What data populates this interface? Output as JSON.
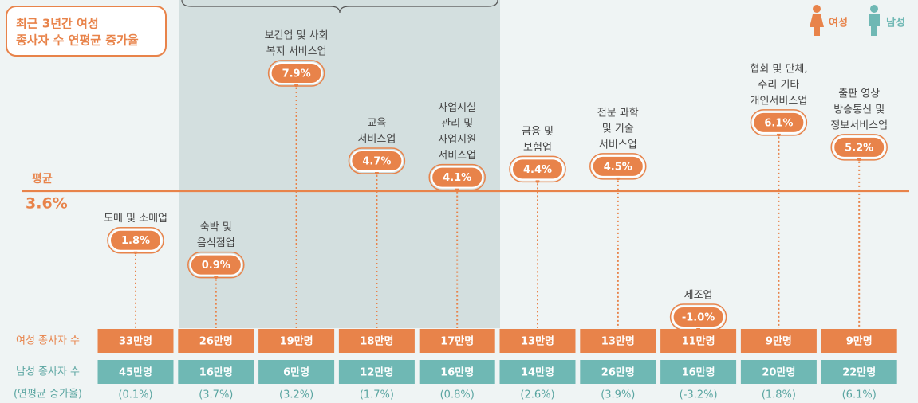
{
  "chart_data": {
    "type": "lollipop",
    "title": [
      "최근 3년간 여성",
      "종사자 수 연평균 증가율"
    ],
    "legend": [
      {
        "name": "여성",
        "color": "#e8834a"
      },
      {
        "name": "남성",
        "color": "#6fb8b4"
      }
    ],
    "categories": [
      [
        "도매 및 소매업"
      ],
      [
        "숙박 및",
        "음식점업"
      ],
      [
        "보건업 및 사회",
        "복지 서비스업"
      ],
      [
        "교육",
        "서비스업"
      ],
      [
        "사업시설",
        "관리 및",
        "사업지원",
        "서비스업"
      ],
      [
        "금융 및",
        "보험업"
      ],
      [
        "전문 과학",
        "및 기술",
        "서비스업"
      ],
      [
        "제조업"
      ],
      [
        "협회 및 단체,",
        "수리 기타",
        "개인서비스업"
      ],
      [
        "출판 영상",
        "방송통신 및",
        "정보서비스업"
      ]
    ],
    "color": "#e8834a",
    "values": [
      1.8,
      0.9,
      7.9,
      4.7,
      4.1,
      4.4,
      4.5,
      -1.0,
      6.1,
      5.2
    ],
    "value_labels": [
      "1.8%",
      "0.9%",
      "7.9%",
      "4.7%",
      "4.1%",
      "4.4%",
      "4.5%",
      "-1.0%",
      "6.1%",
      "5.2%"
    ],
    "average": {
      "label": "평균",
      "value": 3.6,
      "value_label": "3.6%"
    },
    "rows": [
      {
        "label": "여성 종사자 수",
        "cells": [
          "33만명",
          "26만명",
          "19만명",
          "18만명",
          "17만명",
          "13만명",
          "13만명",
          "11만명",
          "9만명",
          "9만명"
        ]
      },
      {
        "label": "남성 종사자 수",
        "cells": [
          "45만명",
          "16만명",
          "6만명",
          "12만명",
          "16만명",
          "14만명",
          "26만명",
          "16만명",
          "20만명",
          "22만명"
        ]
      },
      {
        "label": "(연평균 증가율)",
        "cells": [
          "(0.1%)",
          "(3.7%)",
          "(3.2%)",
          "(1.7%)",
          "(0.8%)",
          "(2.6%)",
          "(3.9%)",
          "(-3.2%)",
          "(1.8%)",
          "(6.1%)"
        ]
      }
    ]
  }
}
